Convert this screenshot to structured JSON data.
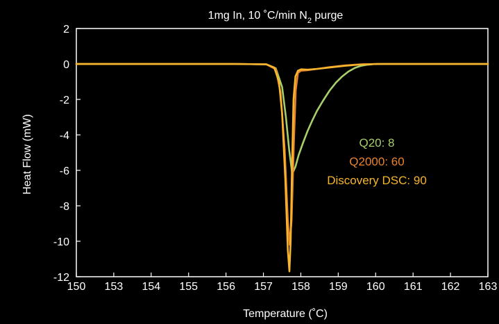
{
  "chart_data": {
    "type": "line",
    "title": {
      "main": "1mg In, 10 ˚C/min N",
      "subscript": "2",
      "suffix": " purge"
    },
    "xlabel": "Temperature (˚C)",
    "ylabel": "Heat Flow (mW)",
    "xlim": [
      150,
      163
    ],
    "ylim": [
      -12,
      2
    ],
    "x_ticks": [
      150,
      153,
      154,
      155,
      156,
      157,
      158,
      159,
      160,
      161,
      162,
      163
    ],
    "x_tick_labels": [
      "150",
      "153",
      "154",
      "155",
      "156",
      "157",
      "158",
      "159",
      "160",
      "161",
      "162",
      "163"
    ],
    "y_ticks": [
      2,
      0,
      -2,
      -4,
      -6,
      -8,
      -10,
      -12
    ],
    "y_tick_labels": [
      "2",
      "0",
      "-2",
      "-4",
      "-6",
      "-8",
      "-10",
      "-12"
    ],
    "grid": false,
    "legend_position": "center-right",
    "series": [
      {
        "name": "Q20: 8",
        "color": "#a8cf6a",
        "x": [
          150,
          155,
          156,
          156.3,
          156.5,
          156.62,
          156.72,
          156.82,
          156.92,
          157.02,
          157.15,
          157.3,
          157.45,
          157.6,
          157.8,
          158.0,
          158.2,
          158.4,
          158.6,
          158.8,
          159.0,
          159.2,
          159.4,
          159.7,
          160,
          163
        ],
        "values": [
          0,
          0,
          -0.02,
          -0.25,
          -1.3,
          -3.0,
          -4.8,
          -6.2,
          -5.8,
          -5.15,
          -4.5,
          -3.8,
          -3.2,
          -2.65,
          -2.05,
          -1.5,
          -1.05,
          -0.7,
          -0.42,
          -0.22,
          -0.1,
          -0.04,
          -0.01,
          0,
          0,
          0
        ]
      },
      {
        "name": "Q2000: 60",
        "color": "#e8832e",
        "x": [
          150,
          155,
          156,
          156.3,
          156.45,
          156.58,
          156.68,
          156.74,
          156.8,
          156.87,
          156.93,
          157.0,
          157.1,
          157.3,
          157.6,
          158.0,
          158.5,
          159.0,
          159.5,
          160,
          163
        ],
        "values": [
          0,
          0,
          -0.02,
          -0.3,
          -1.6,
          -4.8,
          -8.8,
          -10.2,
          -8.8,
          -4.5,
          -1.5,
          -0.5,
          -0.38,
          -0.35,
          -0.28,
          -0.18,
          -0.08,
          -0.02,
          0,
          0,
          0
        ]
      },
      {
        "name": "Discovery DSC: 90",
        "color": "#f7b52d",
        "x": [
          150,
          155,
          156,
          156.25,
          156.4,
          156.5,
          156.6,
          156.68,
          156.73,
          156.77,
          156.81,
          156.86,
          156.92,
          157.0,
          157.1,
          157.3,
          157.6,
          158.0,
          158.5,
          159.0,
          159.5,
          160,
          163
        ],
        "values": [
          0,
          0,
          -0.02,
          -0.2,
          -1.0,
          -2.8,
          -6.5,
          -10.5,
          -11.7,
          -10.0,
          -6.0,
          -2.0,
          -0.7,
          -0.38,
          -0.3,
          -0.32,
          -0.28,
          -0.2,
          -0.1,
          -0.03,
          0,
          0,
          0
        ]
      }
    ]
  }
}
